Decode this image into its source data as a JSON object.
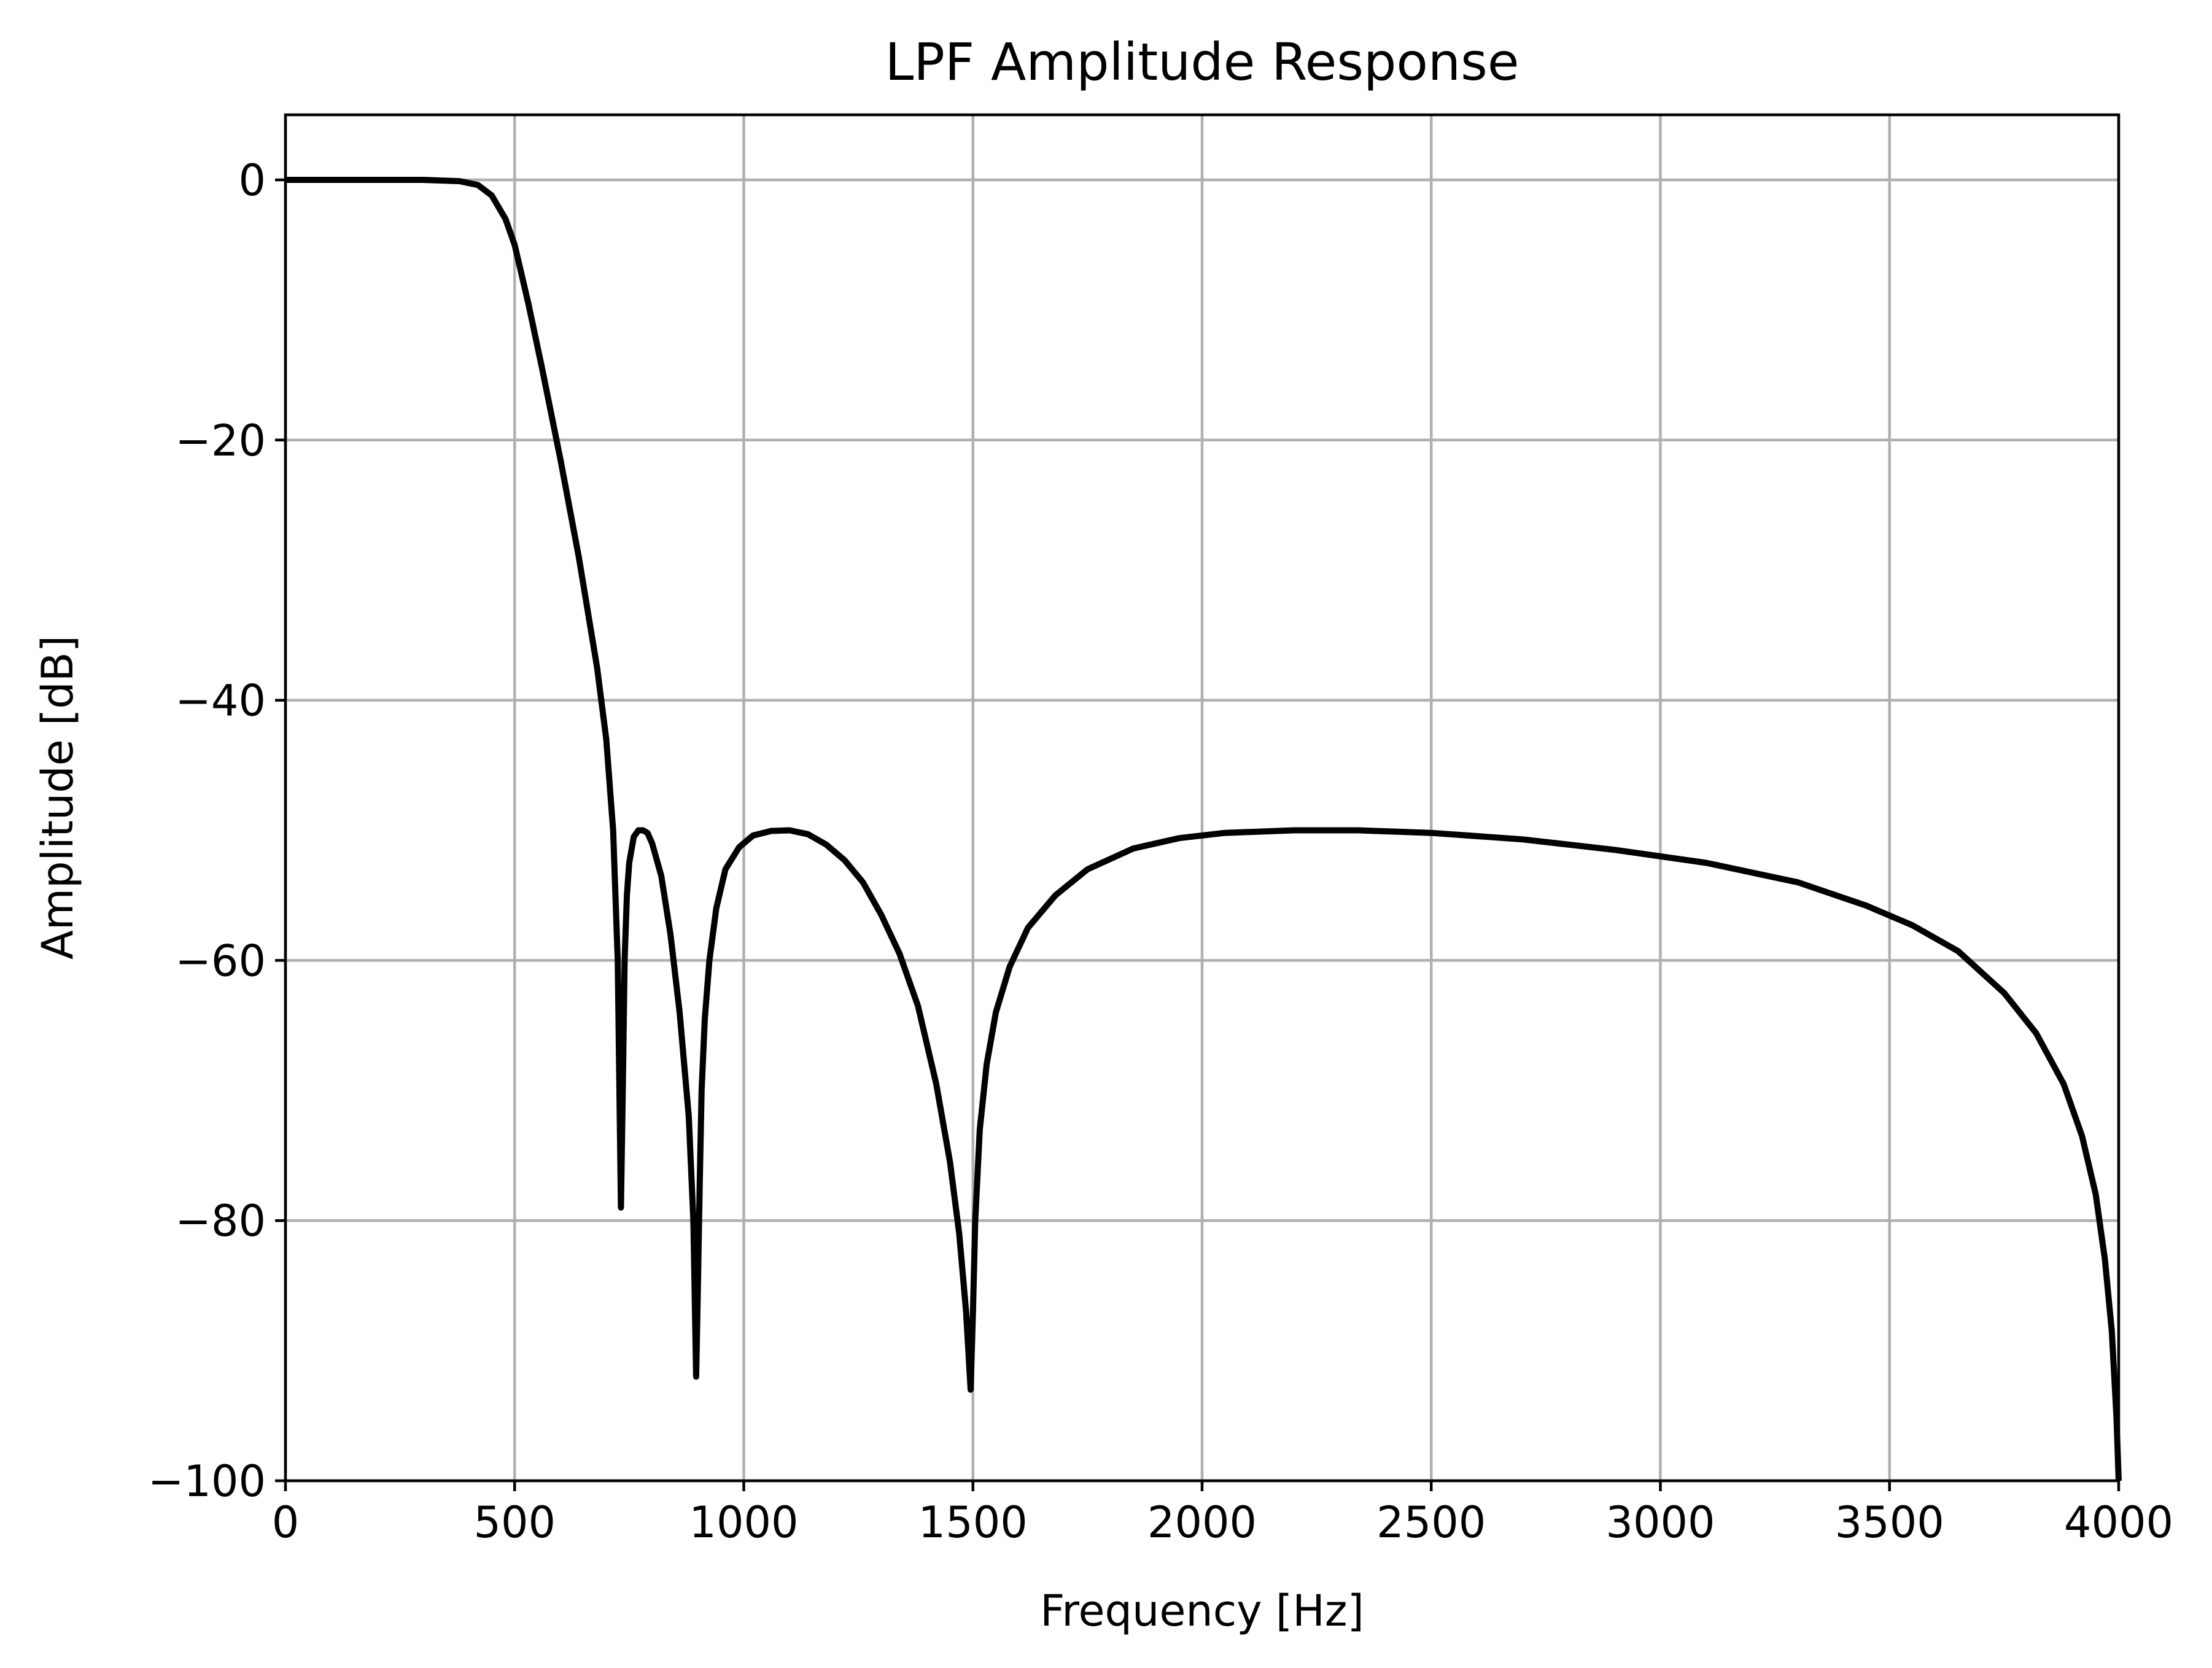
{
  "chart_data": {
    "type": "line",
    "title": "LPF Amplitude Response",
    "xlabel": "Frequency [Hz]",
    "ylabel": "Amplitude [dB]",
    "xlim": [
      0,
      4000
    ],
    "ylim": [
      -100,
      5
    ],
    "xticks": [
      0,
      500,
      1000,
      1500,
      2000,
      2500,
      3000,
      3500,
      4000
    ],
    "xtick_labels": [
      "0",
      "500",
      "1000",
      "1500",
      "2000",
      "2500",
      "3000",
      "3500",
      "4000"
    ],
    "yticks": [
      0,
      -20,
      -40,
      -60,
      -80,
      -100
    ],
    "ytick_labels": [
      "0",
      "−20",
      "−40",
      "−60",
      "−80",
      "−100"
    ],
    "grid": true,
    "series": [
      {
        "color": "#000000",
        "x": [
          0,
          100,
          200,
          300,
          380,
          420,
          450,
          480,
          500,
          530,
          560,
          600,
          640,
          680,
          700,
          715,
          725,
          732,
          736,
          740,
          745,
          750,
          760,
          770,
          780,
          790,
          800,
          820,
          840,
          860,
          880,
          890,
          896,
          900,
          904,
          908,
          915,
          925,
          940,
          960,
          990,
          1020,
          1060,
          1100,
          1140,
          1180,
          1220,
          1260,
          1300,
          1340,
          1380,
          1420,
          1450,
          1470,
          1485,
          1495,
          1500,
          1505,
          1515,
          1530,
          1550,
          1580,
          1620,
          1680,
          1750,
          1850,
          1950,
          2050,
          2200,
          2340,
          2500,
          2700,
          2900,
          3100,
          3300,
          3450,
          3550,
          3650,
          3750,
          3820,
          3880,
          3920,
          3950,
          3970,
          3985,
          3995,
          4000
        ],
        "y": [
          0,
          0,
          0,
          0,
          -0.1,
          -0.4,
          -1.2,
          -3,
          -5,
          -9.5,
          -14.5,
          -21.5,
          -29,
          -37.5,
          -43,
          -50,
          -60,
          -79,
          -70,
          -60,
          -55,
          -52.5,
          -50.5,
          -50,
          -50,
          -50.2,
          -51,
          -53.5,
          -58,
          -64,
          -72,
          -80,
          -92,
          -85,
          -77,
          -70,
          -64.5,
          -60,
          -56,
          -53,
          -51.3,
          -50.4,
          -50.05,
          -50,
          -50.3,
          -51.1,
          -52.3,
          -54,
          -56.5,
          -59.5,
          -63.5,
          -69.5,
          -75.5,
          -81,
          -87,
          -93,
          -87,
          -80,
          -73,
          -68,
          -64,
          -60.5,
          -57.5,
          -55,
          -53,
          -51.4,
          -50.6,
          -50.2,
          -50,
          -50,
          -50.2,
          -50.7,
          -51.5,
          -52.5,
          -54,
          -55.8,
          -57.3,
          -59.3,
          -62.5,
          -65.6,
          -69.5,
          -73.5,
          -78,
          -83,
          -88.5,
          -95,
          -100
        ]
      }
    ]
  }
}
